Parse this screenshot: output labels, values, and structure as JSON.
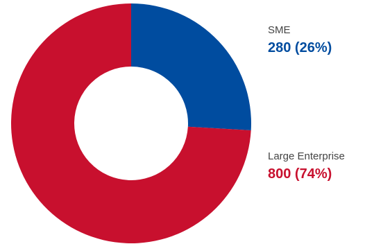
{
  "chart_data": {
    "type": "pie",
    "variant": "donut",
    "title": "",
    "legend_position": "right",
    "slices": [
      {
        "name": "SME",
        "value": 280,
        "percent": 26,
        "label": "280 (26%)",
        "color": "#004c9f"
      },
      {
        "name": "Large Enterprise",
        "value": 800,
        "percent": 74,
        "label": "800 (74%)",
        "color": "#c8102e"
      }
    ]
  }
}
